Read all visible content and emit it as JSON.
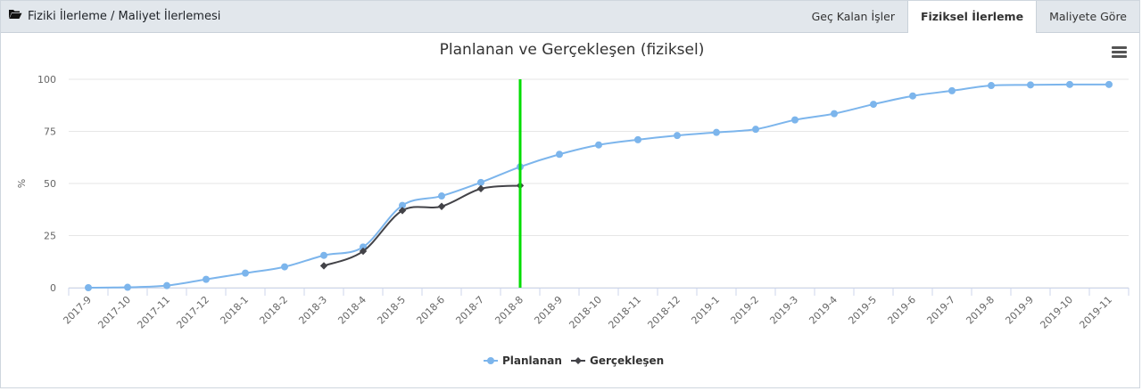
{
  "header": {
    "title": "Fiziki İlerleme / Maliyet İlerlemesi",
    "icon": "folder-open-icon",
    "tabs": [
      {
        "label": "Geç Kalan İşler",
        "active": false
      },
      {
        "label": "Fiziksel İlerleme",
        "active": true
      },
      {
        "label": "Maliyete Göre",
        "active": false
      }
    ]
  },
  "chart_data": {
    "type": "line",
    "title": "Planlanan ve Gerçekleşen (fiziksel)",
    "ylabel": "%",
    "ylim": [
      0,
      100
    ],
    "yticks": [
      0,
      25,
      50,
      75,
      100
    ],
    "categories": [
      "2017-9",
      "2017-10",
      "2017-11",
      "2017-12",
      "2018-1",
      "2018-2",
      "2018-3",
      "2018-4",
      "2018-5",
      "2018-6",
      "2018-7",
      "2018-8",
      "2018-9",
      "2018-10",
      "2018-11",
      "2018-12",
      "2019-1",
      "2019-2",
      "2019-3",
      "2019-4",
      "2019-5",
      "2019-6",
      "2019-7",
      "2019-8",
      "2019-9",
      "2019-10",
      "2019-11"
    ],
    "series": [
      {
        "name": "Planlanan",
        "color": "#7cb5ec",
        "marker": "circle",
        "values": [
          0,
          0.2,
          1,
          4,
          7,
          10,
          15.5,
          19.5,
          39.5,
          44,
          50.5,
          58,
          64,
          68.5,
          71,
          73,
          74.5,
          76,
          80.5,
          83.5,
          88,
          92,
          94.5,
          97,
          97.3,
          97.5,
          97.5
        ]
      },
      {
        "name": "Gerçekleşen",
        "color": "#434348",
        "marker": "diamond",
        "values": [
          null,
          null,
          null,
          null,
          null,
          null,
          10.5,
          17.5,
          37,
          39,
          47.5,
          49,
          null,
          null,
          null,
          null,
          null,
          null,
          null,
          null,
          null,
          null,
          null,
          null,
          null,
          null,
          null
        ]
      }
    ],
    "plotline": {
      "category": "2018-8",
      "color": "#00dd00"
    },
    "legend": "bottom-center",
    "grid": true
  }
}
